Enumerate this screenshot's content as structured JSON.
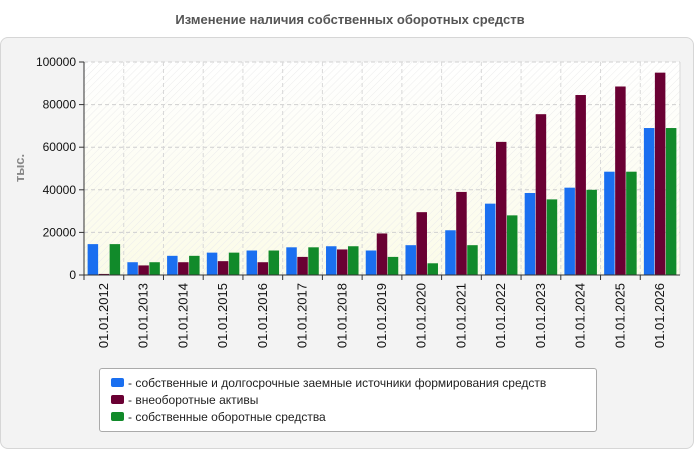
{
  "chart_data": {
    "type": "bar",
    "title": "Изменение наличия собственных оборотных средств",
    "ylabel": "тыс.",
    "xlabel": "",
    "ylim": [
      0,
      100000
    ],
    "yticks": [
      0,
      20000,
      40000,
      60000,
      80000,
      100000
    ],
    "grid": true,
    "legend_position": "bottom",
    "categories": [
      "01.01.2012",
      "01.01.2013",
      "01.01.2014",
      "01.01.2015",
      "01.01.2016",
      "01.01.2017",
      "01.01.2018",
      "01.01.2019",
      "01.01.2020",
      "01.01.2021",
      "01.01.2022",
      "01.01.2023",
      "01.01.2024",
      "01.01.2025",
      "01.01.2026"
    ],
    "series": [
      {
        "name": "- собственные и долгосрочные заемные источники формирования средств",
        "color": "#1a6ff0",
        "values": [
          14500,
          6000,
          9000,
          10500,
          11500,
          13000,
          13500,
          11500,
          14000,
          21000,
          33500,
          38500,
          41000,
          48500,
          69000
        ]
      },
      {
        "name": "- внеоборотные активы",
        "color": "#6a0033",
        "values": [
          500,
          4500,
          6000,
          6500,
          6000,
          8500,
          12000,
          19500,
          29500,
          39000,
          62500,
          75500,
          84500,
          88500,
          95000
        ]
      },
      {
        "name": "- собственные оборотные средства",
        "color": "#118a2a",
        "values": [
          14500,
          6000,
          9000,
          10500,
          11500,
          13000,
          13500,
          8500,
          5500,
          14000,
          28000,
          35500,
          40000,
          48500,
          69000
        ]
      }
    ]
  }
}
